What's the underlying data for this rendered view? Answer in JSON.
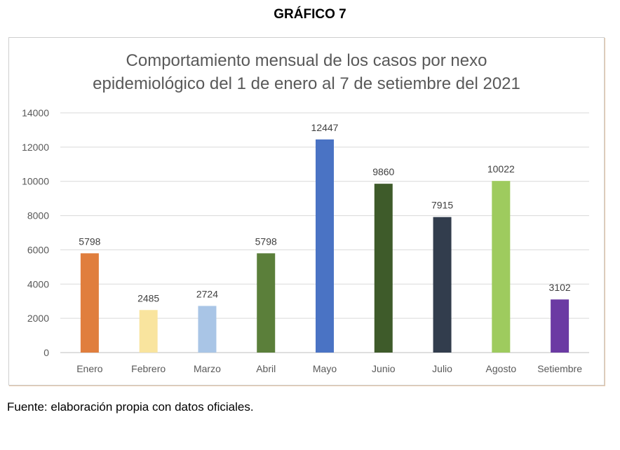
{
  "page": {
    "heading": "GRÁFICO 7",
    "source_note": "Fuente: elaboración propia con datos oficiales."
  },
  "chart_data": {
    "type": "bar",
    "title_line1": "Comportamiento mensual de los casos por nexo",
    "title_line2": "epidemiológico del 1 de enero al 7 de setiembre del 2021",
    "categories": [
      "Enero",
      "Febrero",
      "Marzo",
      "Abril",
      "Mayo",
      "Junio",
      "Julio",
      "Agosto",
      "Setiembre"
    ],
    "values": [
      5798,
      2485,
      2724,
      5798,
      12447,
      9860,
      7915,
      10022,
      3102
    ],
    "colors": [
      "#e07e3d",
      "#f9e49e",
      "#a9c5e6",
      "#5b7f3a",
      "#4a73c4",
      "#3e5b2a",
      "#323d4d",
      "#9ecb5e",
      "#6b3aa3"
    ],
    "ylim": [
      0,
      14000
    ],
    "yticks": [
      0,
      2000,
      4000,
      6000,
      8000,
      10000,
      12000,
      14000
    ],
    "grid": true,
    "data_labels": true,
    "xlabel": "",
    "ylabel": ""
  }
}
